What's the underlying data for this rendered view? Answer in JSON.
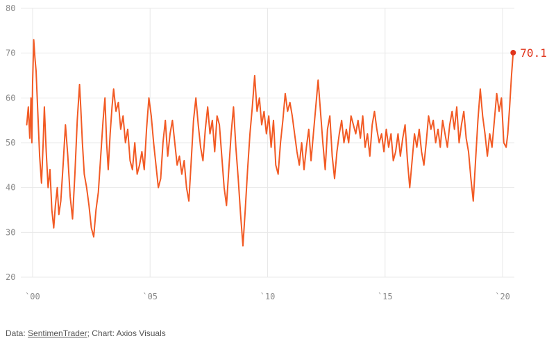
{
  "colors": {
    "line": "#f25a24",
    "end_label": "#e0341b",
    "grid": "#e8e8e8",
    "tick": "#8a8a8a"
  },
  "footer": {
    "prefix": "Data: ",
    "source": "SentimenTrader",
    "suffix": "; Chart: Axios Visuals"
  },
  "chart_data": {
    "type": "line",
    "title": "",
    "xlabel": "",
    "ylabel": "",
    "ylim": [
      20,
      80
    ],
    "xlim": [
      1999.5,
      2020.5
    ],
    "grid": true,
    "y_ticks": [
      "20",
      "30",
      "40",
      "50",
      "60",
      "70",
      "80"
    ],
    "y_tick_values": [
      20,
      30,
      40,
      50,
      60,
      70,
      80
    ],
    "x_ticks": [
      "`00",
      "`05",
      "`10",
      "`15",
      "`20"
    ],
    "x_tick_values": [
      2000,
      2005,
      2010,
      2015,
      2020
    ],
    "end_label": "70.1",
    "series": [
      {
        "values": [
          [
            1999.75,
            54
          ],
          [
            1999.82,
            58
          ],
          [
            1999.88,
            51
          ],
          [
            1999.93,
            60
          ],
          [
            1999.97,
            50
          ],
          [
            2000.0,
            63
          ],
          [
            2000.05,
            73
          ],
          [
            2000.1,
            69
          ],
          [
            2000.15,
            66
          ],
          [
            2000.22,
            57
          ],
          [
            2000.3,
            47
          ],
          [
            2000.38,
            41
          ],
          [
            2000.45,
            50
          ],
          [
            2000.5,
            58
          ],
          [
            2000.58,
            48
          ],
          [
            2000.66,
            40
          ],
          [
            2000.74,
            44
          ],
          [
            2000.82,
            35
          ],
          [
            2000.9,
            31
          ],
          [
            2000.97,
            36
          ],
          [
            2001.05,
            40
          ],
          [
            2001.12,
            34
          ],
          [
            2001.2,
            37
          ],
          [
            2001.3,
            45
          ],
          [
            2001.4,
            54
          ],
          [
            2001.5,
            47
          ],
          [
            2001.6,
            38
          ],
          [
            2001.7,
            33
          ],
          [
            2001.8,
            43
          ],
          [
            2001.9,
            55
          ],
          [
            2002.0,
            63
          ],
          [
            2002.05,
            58
          ],
          [
            2002.12,
            50
          ],
          [
            2002.2,
            43
          ],
          [
            2002.3,
            40
          ],
          [
            2002.4,
            36
          ],
          [
            2002.5,
            31
          ],
          [
            2002.6,
            29
          ],
          [
            2002.7,
            35
          ],
          [
            2002.8,
            39
          ],
          [
            2002.9,
            47
          ],
          [
            2003.0,
            55
          ],
          [
            2003.08,
            60
          ],
          [
            2003.15,
            50
          ],
          [
            2003.22,
            44
          ],
          [
            2003.3,
            52
          ],
          [
            2003.38,
            58
          ],
          [
            2003.45,
            62
          ],
          [
            2003.55,
            57
          ],
          [
            2003.65,
            59
          ],
          [
            2003.75,
            53
          ],
          [
            2003.85,
            56
          ],
          [
            2003.95,
            50
          ],
          [
            2004.05,
            53
          ],
          [
            2004.15,
            46
          ],
          [
            2004.25,
            44
          ],
          [
            2004.35,
            50
          ],
          [
            2004.45,
            43
          ],
          [
            2004.55,
            45
          ],
          [
            2004.65,
            48
          ],
          [
            2004.75,
            44
          ],
          [
            2004.85,
            53
          ],
          [
            2004.95,
            60
          ],
          [
            2005.05,
            56
          ],
          [
            2005.15,
            50
          ],
          [
            2005.25,
            45
          ],
          [
            2005.35,
            40
          ],
          [
            2005.45,
            42
          ],
          [
            2005.55,
            50
          ],
          [
            2005.65,
            55
          ],
          [
            2005.75,
            47
          ],
          [
            2005.85,
            52
          ],
          [
            2005.95,
            55
          ],
          [
            2006.05,
            50
          ],
          [
            2006.15,
            45
          ],
          [
            2006.25,
            47
          ],
          [
            2006.35,
            43
          ],
          [
            2006.45,
            46
          ],
          [
            2006.55,
            40
          ],
          [
            2006.65,
            37
          ],
          [
            2006.75,
            46
          ],
          [
            2006.85,
            55
          ],
          [
            2006.95,
            60
          ],
          [
            2007.05,
            54
          ],
          [
            2007.15,
            49
          ],
          [
            2007.25,
            46
          ],
          [
            2007.35,
            53
          ],
          [
            2007.45,
            58
          ],
          [
            2007.55,
            52
          ],
          [
            2007.65,
            55
          ],
          [
            2007.75,
            48
          ],
          [
            2007.85,
            56
          ],
          [
            2007.95,
            54
          ],
          [
            2008.05,
            47
          ],
          [
            2008.15,
            40
          ],
          [
            2008.25,
            36
          ],
          [
            2008.35,
            44
          ],
          [
            2008.45,
            52
          ],
          [
            2008.55,
            58
          ],
          [
            2008.65,
            49
          ],
          [
            2008.75,
            42
          ],
          [
            2008.85,
            34
          ],
          [
            2008.95,
            27
          ],
          [
            2009.05,
            35
          ],
          [
            2009.15,
            44
          ],
          [
            2009.25,
            52
          ],
          [
            2009.35,
            58
          ],
          [
            2009.45,
            65
          ],
          [
            2009.55,
            57
          ],
          [
            2009.65,
            60
          ],
          [
            2009.75,
            54
          ],
          [
            2009.85,
            57
          ],
          [
            2009.95,
            52
          ],
          [
            2010.05,
            56
          ],
          [
            2010.15,
            49
          ],
          [
            2010.25,
            55
          ],
          [
            2010.35,
            45
          ],
          [
            2010.45,
            43
          ],
          [
            2010.55,
            50
          ],
          [
            2010.65,
            55
          ],
          [
            2010.75,
            61
          ],
          [
            2010.85,
            57
          ],
          [
            2010.95,
            59
          ],
          [
            2011.05,
            56
          ],
          [
            2011.15,
            52
          ],
          [
            2011.25,
            48
          ],
          [
            2011.35,
            45
          ],
          [
            2011.45,
            50
          ],
          [
            2011.55,
            44
          ],
          [
            2011.65,
            49
          ],
          [
            2011.75,
            53
          ],
          [
            2011.85,
            46
          ],
          [
            2011.95,
            52
          ],
          [
            2012.05,
            58
          ],
          [
            2012.15,
            64
          ],
          [
            2012.25,
            57
          ],
          [
            2012.35,
            50
          ],
          [
            2012.45,
            44
          ],
          [
            2012.55,
            53
          ],
          [
            2012.65,
            56
          ],
          [
            2012.75,
            47
          ],
          [
            2012.85,
            42
          ],
          [
            2012.95,
            48
          ],
          [
            2013.05,
            52
          ],
          [
            2013.15,
            55
          ],
          [
            2013.25,
            50
          ],
          [
            2013.35,
            53
          ],
          [
            2013.45,
            50
          ],
          [
            2013.55,
            56
          ],
          [
            2013.65,
            54
          ],
          [
            2013.75,
            52
          ],
          [
            2013.85,
            55
          ],
          [
            2013.95,
            51
          ],
          [
            2014.05,
            56
          ],
          [
            2014.15,
            49
          ],
          [
            2014.25,
            52
          ],
          [
            2014.35,
            47
          ],
          [
            2014.45,
            54
          ],
          [
            2014.55,
            57
          ],
          [
            2014.65,
            53
          ],
          [
            2014.75,
            50
          ],
          [
            2014.85,
            52
          ],
          [
            2014.95,
            48
          ],
          [
            2015.05,
            53
          ],
          [
            2015.15,
            49
          ],
          [
            2015.25,
            52
          ],
          [
            2015.35,
            46
          ],
          [
            2015.45,
            48
          ],
          [
            2015.55,
            52
          ],
          [
            2015.65,
            47
          ],
          [
            2015.75,
            51
          ],
          [
            2015.85,
            54
          ],
          [
            2015.95,
            46
          ],
          [
            2016.05,
            40
          ],
          [
            2016.15,
            46
          ],
          [
            2016.25,
            52
          ],
          [
            2016.35,
            49
          ],
          [
            2016.45,
            53
          ],
          [
            2016.55,
            48
          ],
          [
            2016.65,
            45
          ],
          [
            2016.75,
            50
          ],
          [
            2016.85,
            56
          ],
          [
            2016.95,
            53
          ],
          [
            2017.05,
            55
          ],
          [
            2017.15,
            50
          ],
          [
            2017.25,
            53
          ],
          [
            2017.35,
            49
          ],
          [
            2017.45,
            55
          ],
          [
            2017.55,
            52
          ],
          [
            2017.65,
            49
          ],
          [
            2017.75,
            54
          ],
          [
            2017.85,
            57
          ],
          [
            2017.95,
            53
          ],
          [
            2018.05,
            58
          ],
          [
            2018.15,
            50
          ],
          [
            2018.25,
            54
          ],
          [
            2018.35,
            57
          ],
          [
            2018.45,
            51
          ],
          [
            2018.55,
            48
          ],
          [
            2018.65,
            42
          ],
          [
            2018.75,
            37
          ],
          [
            2018.85,
            46
          ],
          [
            2018.95,
            55
          ],
          [
            2019.05,
            62
          ],
          [
            2019.15,
            56
          ],
          [
            2019.25,
            52
          ],
          [
            2019.35,
            47
          ],
          [
            2019.45,
            52
          ],
          [
            2019.55,
            49
          ],
          [
            2019.65,
            55
          ],
          [
            2019.75,
            61
          ],
          [
            2019.85,
            57
          ],
          [
            2019.95,
            60
          ],
          [
            2020.05,
            50
          ],
          [
            2020.15,
            49
          ],
          [
            2020.22,
            52
          ],
          [
            2020.3,
            58
          ],
          [
            2020.38,
            65
          ],
          [
            2020.45,
            70.1
          ]
        ]
      }
    ]
  }
}
